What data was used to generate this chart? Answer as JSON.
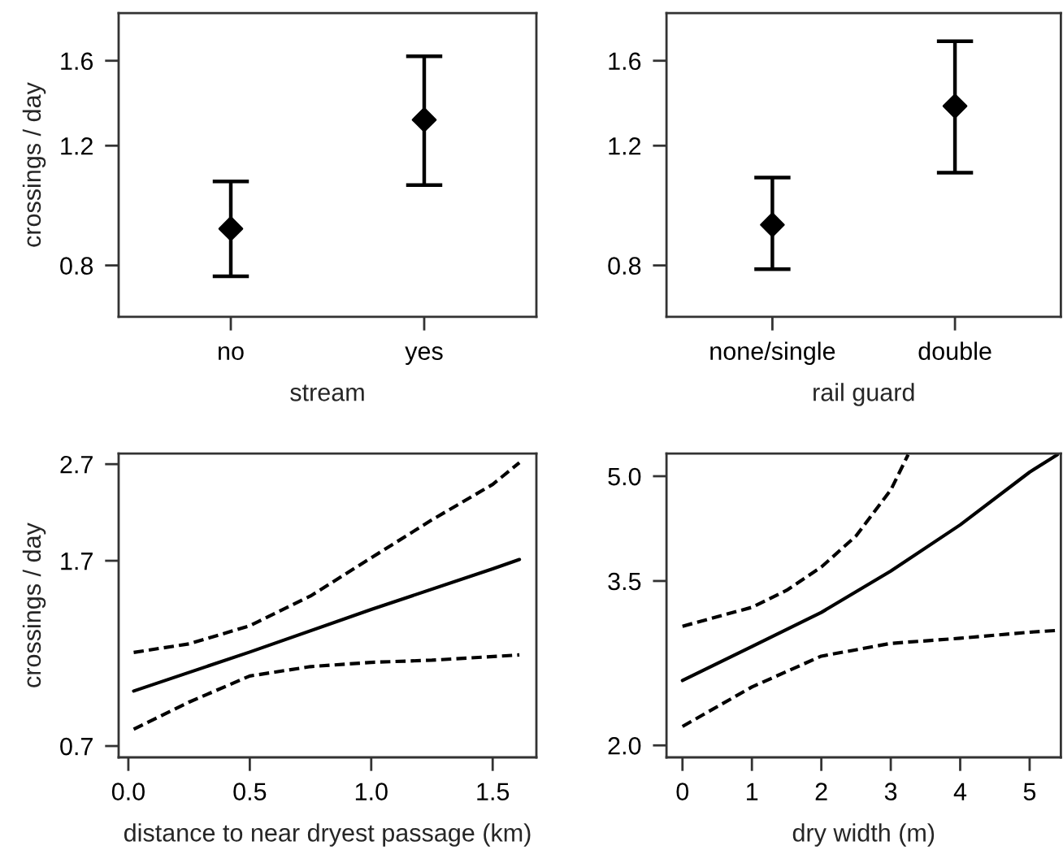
{
  "chart_data": [
    {
      "type": "scatter",
      "ylabel": "crossings / day",
      "xlabel": "stream",
      "categories": [
        "no",
        "yes"
      ],
      "log": "y",
      "marker": "diamond",
      "series": [
        {
          "color": "#000000",
          "values": [
            0.906,
            1.31
          ],
          "errors": [
            [
              0.771,
              1.063
            ],
            [
              1.05,
              1.624
            ]
          ]
        }
      ],
      "ylim": [
        0.672,
        1.88
      ],
      "yticks": [
        0.8,
        1.2,
        1.6
      ],
      "grid": false,
      "legend": false
    },
    {
      "type": "scatter",
      "xlabel": "rail guard",
      "categories": [
        "none/single",
        "double"
      ],
      "log": "y",
      "marker": "diamond",
      "series": [
        {
          "color": "#000000",
          "values": [
            0.918,
            1.372
          ],
          "errors": [
            [
              0.79,
              1.077
            ],
            [
              1.095,
              1.709
            ]
          ]
        }
      ],
      "ylim": [
        0.672,
        1.88
      ],
      "yticks": [
        0.8,
        1.2,
        1.6
      ],
      "grid": false,
      "legend": false
    },
    {
      "type": "line",
      "ylabel": "crossings / day",
      "xlabel": "distance to near dryest passage (km)",
      "log": "y",
      "series": [
        {
          "color": "#000000",
          "line_style": "solid",
          "x": [
            0.022,
            0.5,
            1.0,
            1.5,
            1.61
          ],
          "values": [
            0.911,
            1.098,
            1.346,
            1.636,
            1.71
          ]
        },
        {
          "color": "#000000",
          "line_style": "dashed",
          "x": [
            0.022,
            0.25,
            0.5,
            0.75,
            1.0,
            1.25,
            1.5,
            1.61
          ],
          "values": [
            1.096,
            1.142,
            1.245,
            1.436,
            1.724,
            2.068,
            2.45,
            2.72
          ]
        },
        {
          "color": "#000000",
          "line_style": "dashed",
          "x": [
            0.022,
            0.25,
            0.5,
            0.75,
            1.0,
            1.25,
            1.61
          ],
          "values": [
            0.759,
            0.864,
            0.979,
            1.024,
            1.045,
            1.056,
            1.083
          ]
        }
      ],
      "xlim": [
        -0.04,
        1.68
      ],
      "xticks": [
        {
          "value": 0,
          "label": "0.0"
        },
        0.5,
        {
          "value": 1,
          "label": "1.0"
        },
        1.5
      ],
      "ylim": [
        0.663,
        2.84
      ],
      "yticks": [
        0.7,
        1.7,
        2.7
      ],
      "grid": false,
      "legend": false,
      "marker": "none"
    },
    {
      "type": "line",
      "xlabel": "dry width (m)",
      "log": "y",
      "series": [
        {
          "color": "#000000",
          "line_style": "solid",
          "x": [
            0,
            1,
            2,
            3,
            4,
            5,
            5.4
          ],
          "values": [
            2.494,
            2.8,
            3.145,
            3.62,
            4.237,
            5.07,
            5.38
          ]
        },
        {
          "color": "#000000",
          "line_style": "dashed",
          "x": [
            0,
            1,
            1.5,
            2,
            2.5,
            3,
            3.25
          ],
          "values": [
            3.0,
            3.2,
            3.39,
            3.67,
            4.08,
            4.77,
            5.38
          ]
        },
        {
          "color": "#000000",
          "line_style": "dashed",
          "x": [
            0,
            1,
            2,
            3,
            4,
            5,
            5.45
          ],
          "values": [
            2.133,
            2.44,
            2.71,
            2.83,
            2.88,
            2.94,
            2.96
          ]
        }
      ],
      "xlim": [
        -0.23,
        5.45
      ],
      "xticks": [
        0,
        1,
        2,
        3,
        4,
        5
      ],
      "ylim": [
        1.92,
        5.4
      ],
      "yticks": [
        {
          "value": 2,
          "label": "2.0"
        },
        3.5,
        {
          "value": 5,
          "label": "5.0"
        }
      ],
      "grid": false,
      "legend": false,
      "marker": "none"
    }
  ]
}
